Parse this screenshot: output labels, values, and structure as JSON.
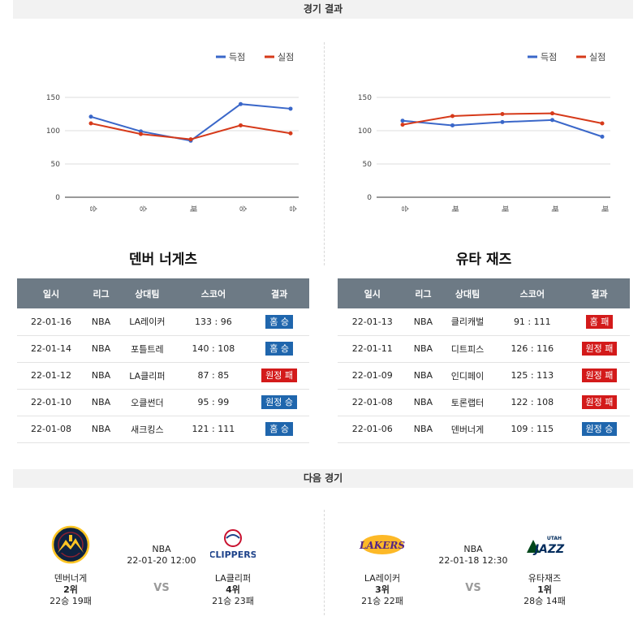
{
  "headers": {
    "results": "경기 결과",
    "next": "다음 경기"
  },
  "legend": {
    "score": "득점",
    "conceded": "실점"
  },
  "colors": {
    "score": "#3a67c9",
    "conceded": "#d63a1a",
    "win": "#1f66ad",
    "loss": "#d31a1a",
    "table_header": "#6d7a85"
  },
  "chart_data": [
    {
      "type": "line",
      "categories": [
        "승",
        "승",
        "패",
        "승",
        "승"
      ],
      "ylim": [
        0,
        150
      ],
      "yticks": [
        0,
        50,
        100,
        150
      ],
      "legend_position": "top-right",
      "grid": true,
      "series": [
        {
          "name": "득점",
          "values": [
            121,
            99,
            85,
            140,
            133
          ]
        },
        {
          "name": "실점",
          "values": [
            111,
            95,
            87,
            108,
            96
          ]
        }
      ]
    },
    {
      "type": "line",
      "categories": [
        "승",
        "패",
        "패",
        "패",
        "패"
      ],
      "ylim": [
        0,
        150
      ],
      "yticks": [
        0,
        50,
        100,
        150
      ],
      "legend_position": "top-right",
      "grid": true,
      "series": [
        {
          "name": "득점",
          "values": [
            115,
            108,
            113,
            116,
            91
          ]
        },
        {
          "name": "실점",
          "values": [
            109,
            122,
            125,
            126,
            111
          ]
        }
      ]
    }
  ],
  "teams": {
    "left": {
      "name": "덴버 너게츠",
      "columns": [
        "일시",
        "리그",
        "상대팀",
        "스코어",
        "결과"
      ],
      "rows": [
        {
          "date": "22-01-16",
          "league": "NBA",
          "opponent": "LA레이커",
          "score": "133 : 96",
          "result": "홈 승",
          "win": true
        },
        {
          "date": "22-01-14",
          "league": "NBA",
          "opponent": "포틀트레",
          "score": "140 : 108",
          "result": "홈 승",
          "win": true
        },
        {
          "date": "22-01-12",
          "league": "NBA",
          "opponent": "LA클리퍼",
          "score": "87 : 85",
          "result": "원정 패",
          "win": false
        },
        {
          "date": "22-01-10",
          "league": "NBA",
          "opponent": "오클썬더",
          "score": "95 : 99",
          "result": "원정 승",
          "win": true
        },
        {
          "date": "22-01-08",
          "league": "NBA",
          "opponent": "새크킹스",
          "score": "121 : 111",
          "result": "홈 승",
          "win": true
        }
      ]
    },
    "right": {
      "name": "유타 재즈",
      "columns": [
        "일시",
        "리그",
        "상대팀",
        "스코어",
        "결과"
      ],
      "rows": [
        {
          "date": "22-01-13",
          "league": "NBA",
          "opponent": "클리캐벌",
          "score": "91 : 111",
          "result": "홈 패",
          "win": false
        },
        {
          "date": "22-01-11",
          "league": "NBA",
          "opponent": "디트피스",
          "score": "126 : 116",
          "result": "원정 패",
          "win": false
        },
        {
          "date": "22-01-09",
          "league": "NBA",
          "opponent": "인디페이",
          "score": "125 : 113",
          "result": "원정 패",
          "win": false
        },
        {
          "date": "22-01-08",
          "league": "NBA",
          "opponent": "토론랩터",
          "score": "122 : 108",
          "result": "원정 패",
          "win": false
        },
        {
          "date": "22-01-06",
          "league": "NBA",
          "opponent": "덴버너게",
          "score": "109 : 115",
          "result": "원정 승",
          "win": true
        }
      ]
    }
  },
  "next_games": [
    {
      "league": "NBA",
      "datetime": "22-01-20 12:00",
      "vs": "VS",
      "home": {
        "name": "덴버너게",
        "rank": "2위",
        "record": "22승 19패",
        "logo": "nuggets-logo"
      },
      "away": {
        "name": "LA클리퍼",
        "rank": "4위",
        "record": "21승 23패",
        "logo": "clippers-logo",
        "logo_text": "CLIPPERS"
      }
    },
    {
      "league": "NBA",
      "datetime": "22-01-18 12:30",
      "vs": "VS",
      "home": {
        "name": "LA레이커",
        "rank": "3위",
        "record": "21승 22패",
        "logo": "lakers-logo",
        "logo_text": "LAKERS"
      },
      "away": {
        "name": "유타재즈",
        "rank": "1위",
        "record": "28승 14패",
        "logo": "jazz-logo",
        "logo_text": "JAZZ",
        "logo_subtext": "UTAH"
      }
    }
  ]
}
